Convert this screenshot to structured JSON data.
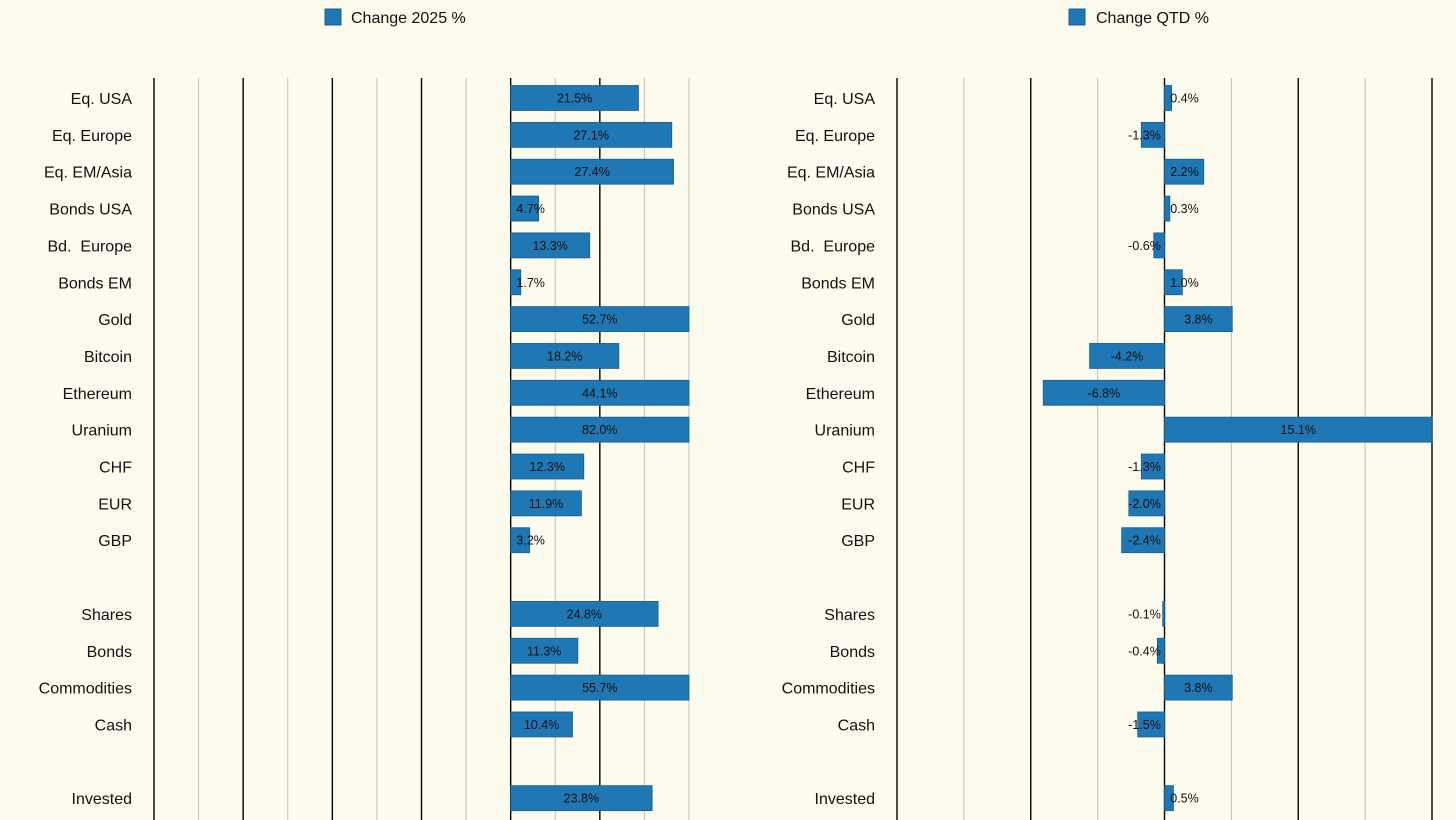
{
  "colors": {
    "background": "#fdfaee",
    "bar": "#1f77b4",
    "bar_edge": "#1a5f90",
    "gridline_light": "#bfbfbf",
    "gridline_dark": "#000000",
    "text": "#111111"
  },
  "chart_data": [
    {
      "type": "bar",
      "orientation": "horizontal",
      "title": "",
      "legend": "Change 2025 %",
      "legend_position": "top-center",
      "xlabel": "",
      "ylabel": "",
      "xlim": [
        -60,
        30
      ],
      "clipped": true,
      "grid": true,
      "categories": [
        "Eq. USA",
        "Eq. Europe",
        "Eq. EM/Asia",
        "Bonds USA",
        "Bd.  Europe",
        "Bonds EM",
        "Gold",
        "Bitcoin",
        "Ethereum",
        "Uranium",
        "CHF",
        "EUR",
        "GBP",
        "",
        "Shares",
        "Bonds",
        "Commodities",
        "Cash",
        "",
        "Invested"
      ],
      "values": [
        21.5,
        27.1,
        27.4,
        4.7,
        13.3,
        1.7,
        52.7,
        18.2,
        44.1,
        82.0,
        12.3,
        11.9,
        3.2,
        null,
        24.8,
        11.3,
        55.7,
        10.4,
        null,
        23.8
      ],
      "value_labels": [
        "21.5%",
        "27.1%",
        "27.4%",
        "4.7%",
        "13.3%",
        "1.7%",
        "52.7%",
        "18.2%",
        "44.1%",
        "82.0%",
        "12.3%",
        "11.9%",
        "3.2%",
        "",
        "24.8%",
        "11.3%",
        "55.7%",
        "10.4%",
        "",
        "23.8%"
      ]
    },
    {
      "type": "bar",
      "orientation": "horizontal",
      "title": "",
      "legend": "Change QTD %",
      "legend_position": "top-center",
      "xlabel": "",
      "ylabel": "",
      "xlim": [
        -15,
        15
      ],
      "clipped": true,
      "grid": true,
      "categories": [
        "Eq. USA",
        "Eq. Europe",
        "Eq. EM/Asia",
        "Bonds USA",
        "Bd.  Europe",
        "Bonds EM",
        "Gold",
        "Bitcoin",
        "Ethereum",
        "Uranium",
        "CHF",
        "EUR",
        "GBP",
        "",
        "Shares",
        "Bonds",
        "Commodities",
        "Cash",
        "",
        "Invested"
      ],
      "values": [
        0.4,
        -1.3,
        2.2,
        0.3,
        -0.6,
        1.0,
        3.8,
        -4.2,
        -6.8,
        15.1,
        -1.3,
        -2.0,
        -2.4,
        null,
        -0.1,
        -0.4,
        3.8,
        -1.5,
        null,
        0.5
      ],
      "value_labels": [
        "0.4%",
        "-1.3%",
        "2.2%",
        "0.3%",
        "-0.6%",
        "1.0%",
        "3.8%",
        "-4.2%",
        "-6.8%",
        "15.1%",
        "-1.3%",
        "-2.0%",
        "-2.4%",
        "",
        "-0.1%",
        "-0.4%",
        "3.8%",
        "-1.5%",
        "",
        "0.5%"
      ]
    }
  ]
}
